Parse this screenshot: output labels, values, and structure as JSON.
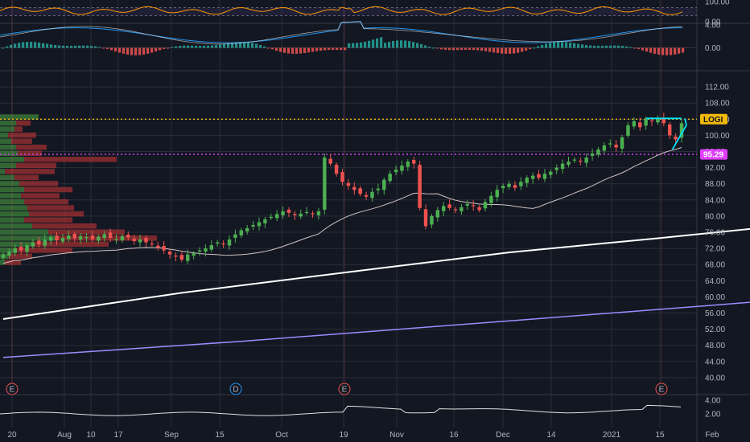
{
  "symbol": "LOGI",
  "colors": {
    "background": "#131722",
    "grid": "#2a2e39",
    "up": "#26a69a",
    "up_candle": "#4caf50",
    "down_candle": "#ef5350",
    "ma_fast": "#d1c4c4",
    "ma_mid": "#ffffff",
    "ma_slow": "#9c8cff",
    "resistance": "#f0b90b",
    "support": "#e040fb",
    "trendline": "#00e5ff",
    "rsi": "#ff9800",
    "macd": "#2196f3",
    "signal": "#e0e0e0",
    "event": "#ef5350",
    "dividend": "#2196f3"
  },
  "chart_data": [
    {
      "type": "line",
      "pane": "rsi",
      "name": "",
      "y_ticks": [
        "100.00",
        "0.00"
      ],
      "ylim": [
        0,
        100
      ]
    },
    {
      "type": "bar",
      "pane": "macd",
      "name": "",
      "y_ticks": [
        "4.00",
        "0.00"
      ],
      "ylim": [
        -4,
        4
      ]
    },
    {
      "type": "candlestick",
      "pane": "price",
      "name": "LOGI",
      "ylim": [
        36,
        116
      ],
      "y_ticks": [
        "112.00",
        "108.00",
        "104.00",
        "100.00",
        "96.00",
        "92.00",
        "88.00",
        "84.00",
        "80.00",
        "76.00",
        "72.00",
        "68.00",
        "64.00",
        "60.00",
        "56.00",
        "52.00",
        "48.00",
        "44.00",
        "40.00"
      ],
      "x_ticks": [
        "20",
        "Aug",
        "10",
        "17",
        "Sep",
        "15",
        "Oct",
        "19",
        "Nov",
        "16",
        "Dec",
        "14",
        "2021",
        "15",
        "Feb"
      ],
      "close": [
        70.5,
        71.2,
        72.0,
        71.5,
        72.8,
        73.5,
        73.0,
        74.2,
        74.8,
        74.0,
        74.6,
        75.2,
        74.5,
        75.0,
        74.8,
        74.2,
        74.9,
        75.5,
        74.6,
        74.3,
        75.0,
        74.7,
        73.8,
        74.2,
        73.5,
        73.0,
        72.2,
        71.5,
        70.5,
        70.0,
        69.2,
        70.5,
        70.8,
        71.5,
        72.0,
        72.8,
        73.5,
        73.0,
        74.2,
        75.5,
        76.5,
        77.0,
        77.8,
        78.5,
        79.2,
        79.8,
        80.5,
        81.2,
        80.8,
        80.2,
        80.6,
        81.0,
        80.5,
        81.2,
        94.5,
        93.0,
        90.5,
        88.5,
        87.5,
        86.5,
        85.5,
        84.8,
        86.0,
        86.8,
        89.0,
        90.5,
        91.5,
        92.5,
        93.5,
        93.0,
        82.0,
        77.5,
        80.0,
        81.5,
        82.5,
        82.0,
        81.5,
        82.2,
        83.0,
        82.5,
        81.5,
        83.5,
        85.0,
        86.5,
        87.5,
        88.0,
        87.0,
        88.5,
        89.5,
        90.0,
        89.5,
        90.5,
        91.0,
        92.0,
        93.0,
        93.5,
        94.0,
        93.5,
        94.5,
        95.5,
        96.5,
        97.5,
        98.0,
        97.0,
        99.5,
        102.5,
        103.5,
        102.0,
        104.0,
        103.5,
        104.0,
        103.0,
        100.0,
        99.0,
        103.0
      ],
      "series": [
        {
          "name": "",
          "kind": "ma_fast"
        },
        {
          "name": "",
          "kind": "ma_mid"
        },
        {
          "name": "",
          "kind": "ma_slow"
        }
      ],
      "ma_mid": [
        [
          0,
          54.5
        ],
        [
          30,
          61.0
        ],
        [
          60,
          66.5
        ],
        [
          85,
          71.0
        ],
        [
          110,
          74.5
        ],
        [
          140,
          79.0
        ],
        [
          170,
          86.7
        ]
      ],
      "ma_slow": [
        [
          0,
          45.0
        ],
        [
          40,
          49.0
        ],
        [
          80,
          53.5
        ],
        [
          120,
          58.0
        ],
        [
          170,
          64.0
        ]
      ],
      "levels": [
        {
          "label": "LOGI",
          "value": 104.0,
          "color_key": "resistance"
        },
        {
          "label": "95.29",
          "value": 95.29,
          "color_key": "support"
        }
      ]
    },
    {
      "type": "line",
      "pane": "lower",
      "name": "",
      "y_ticks": [
        "4.00",
        "2.00"
      ],
      "ylim": [
        0,
        4.6
      ]
    }
  ],
  "events": [
    {
      "letter": "E",
      "label_key": "earnings"
    },
    {
      "letter": "D",
      "label_key": "dividend"
    },
    {
      "letter": "E",
      "label_key": "earnings"
    },
    {
      "letter": "E",
      "label_key": "earnings"
    }
  ],
  "volume_profile_bins": [
    {
      "price": 104.5,
      "up": 48,
      "down": 0
    },
    {
      "price": 103.0,
      "up": 20,
      "down": 18
    },
    {
      "price": 101.5,
      "up": 18,
      "down": 10
    },
    {
      "price": 100.0,
      "up": 10,
      "down": 35
    },
    {
      "price": 98.5,
      "up": 14,
      "down": 26
    },
    {
      "price": 97.0,
      "up": 20,
      "down": 38
    },
    {
      "price": 95.5,
      "up": 22,
      "down": 30
    },
    {
      "price": 94.0,
      "up": 30,
      "down": 115
    },
    {
      "price": 92.5,
      "up": 20,
      "down": 50
    },
    {
      "price": 91.0,
      "up": 6,
      "down": 62
    },
    {
      "price": 89.5,
      "up": 18,
      "down": 30
    },
    {
      "price": 88.0,
      "up": 24,
      "down": 48
    },
    {
      "price": 86.5,
      "up": 30,
      "down": 60
    },
    {
      "price": 85.0,
      "up": 26,
      "down": 48
    },
    {
      "price": 83.5,
      "up": 30,
      "down": 55
    },
    {
      "price": 82.0,
      "up": 34,
      "down": 58
    },
    {
      "price": 80.5,
      "up": 36,
      "down": 68
    },
    {
      "price": 79.0,
      "up": 30,
      "down": 60
    },
    {
      "price": 77.5,
      "up": 40,
      "down": 80
    },
    {
      "price": 76.0,
      "up": 60,
      "down": 95
    },
    {
      "price": 74.5,
      "up": 70,
      "down": 125
    },
    {
      "price": 73.0,
      "up": 40,
      "down": 95
    },
    {
      "price": 71.5,
      "up": 20,
      "down": 70
    },
    {
      "price": 70.0,
      "up": 10,
      "down": 30
    },
    {
      "price": 68.5,
      "up": 6,
      "down": 20
    }
  ]
}
